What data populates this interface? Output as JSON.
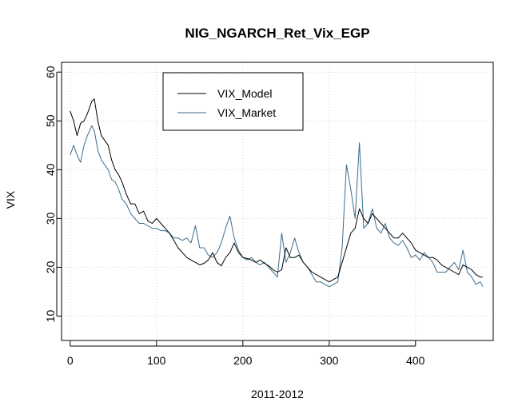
{
  "chart_data": {
    "type": "line",
    "title": "NIG_NGARCH_Ret_Vix_EGP",
    "xlabel": "2011-2012",
    "ylabel": "VIX",
    "xlim": [
      -10,
      490
    ],
    "ylim": [
      5,
      62
    ],
    "x_ticks": [
      "0",
      "100",
      "200",
      "300",
      "400"
    ],
    "y_ticks": [
      "10",
      "20",
      "30",
      "40",
      "50",
      "60"
    ],
    "grid": true,
    "legend_position": "top-left",
    "legend": [
      "VIX_Model",
      "VIX_Market"
    ],
    "series": [
      {
        "name": "VIX_Model",
        "color": "#000000",
        "points": [
          [
            0,
            52
          ],
          [
            4,
            50
          ],
          [
            8,
            47
          ],
          [
            12,
            49.5
          ],
          [
            16,
            50
          ],
          [
            20,
            51.5
          ],
          [
            25,
            54
          ],
          [
            28,
            54.5
          ],
          [
            32,
            50
          ],
          [
            36,
            47
          ],
          [
            40,
            46
          ],
          [
            44,
            45
          ],
          [
            48,
            42
          ],
          [
            52,
            40
          ],
          [
            56,
            39
          ],
          [
            60,
            37.5
          ],
          [
            65,
            35
          ],
          [
            70,
            33
          ],
          [
            75,
            33
          ],
          [
            80,
            31
          ],
          [
            85,
            31.5
          ],
          [
            90,
            29.5
          ],
          [
            95,
            29
          ],
          [
            100,
            30
          ],
          [
            105,
            29
          ],
          [
            110,
            28
          ],
          [
            115,
            27
          ],
          [
            120,
            25.5
          ],
          [
            125,
            24
          ],
          [
            130,
            23
          ],
          [
            135,
            22
          ],
          [
            140,
            21.5
          ],
          [
            145,
            21
          ],
          [
            150,
            20.5
          ],
          [
            155,
            20.8
          ],
          [
            160,
            21.5
          ],
          [
            165,
            23
          ],
          [
            170,
            21
          ],
          [
            175,
            20.3
          ],
          [
            180,
            22
          ],
          [
            185,
            23
          ],
          [
            190,
            25
          ],
          [
            195,
            23
          ],
          [
            200,
            22
          ],
          [
            205,
            21.8
          ],
          [
            210,
            21.5
          ],
          [
            215,
            21
          ],
          [
            220,
            21.5
          ],
          [
            225,
            20.8
          ],
          [
            230,
            20.3
          ],
          [
            235,
            19.5
          ],
          [
            240,
            19
          ],
          [
            245,
            19.5
          ],
          [
            250,
            24
          ],
          [
            255,
            22
          ],
          [
            260,
            22
          ],
          [
            265,
            22.5
          ],
          [
            270,
            21
          ],
          [
            275,
            20
          ],
          [
            280,
            19
          ],
          [
            285,
            18.5
          ],
          [
            290,
            18
          ],
          [
            295,
            17.5
          ],
          [
            300,
            17
          ],
          [
            305,
            17.5
          ],
          [
            310,
            18
          ],
          [
            315,
            21
          ],
          [
            320,
            24
          ],
          [
            325,
            27
          ],
          [
            330,
            28
          ],
          [
            335,
            32
          ],
          [
            340,
            30
          ],
          [
            345,
            29
          ],
          [
            350,
            31
          ],
          [
            355,
            30
          ],
          [
            360,
            29
          ],
          [
            365,
            28
          ],
          [
            370,
            27
          ],
          [
            375,
            26
          ],
          [
            380,
            26
          ],
          [
            385,
            27
          ],
          [
            390,
            26
          ],
          [
            395,
            25
          ],
          [
            400,
            23.5
          ],
          [
            405,
            23
          ],
          [
            410,
            22.5
          ],
          [
            415,
            22
          ],
          [
            420,
            22
          ],
          [
            425,
            21.5
          ],
          [
            430,
            20.5
          ],
          [
            435,
            20
          ],
          [
            440,
            19.5
          ],
          [
            445,
            19
          ],
          [
            450,
            18.5
          ],
          [
            455,
            20.5
          ],
          [
            460,
            20
          ],
          [
            465,
            19.5
          ],
          [
            470,
            18.5
          ],
          [
            475,
            18
          ],
          [
            478,
            18
          ]
        ]
      },
      {
        "name": "VIX_Market",
        "color": "#3a6d8c",
        "points": [
          [
            0,
            43
          ],
          [
            4,
            45
          ],
          [
            8,
            43
          ],
          [
            12,
            41.5
          ],
          [
            16,
            45
          ],
          [
            20,
            47
          ],
          [
            25,
            49
          ],
          [
            28,
            48
          ],
          [
            32,
            44
          ],
          [
            36,
            42
          ],
          [
            40,
            41
          ],
          [
            44,
            40
          ],
          [
            48,
            38
          ],
          [
            52,
            37.5
          ],
          [
            56,
            36
          ],
          [
            60,
            34
          ],
          [
            65,
            33
          ],
          [
            70,
            31
          ],
          [
            75,
            30
          ],
          [
            80,
            29
          ],
          [
            85,
            29
          ],
          [
            90,
            28.5
          ],
          [
            95,
            28
          ],
          [
            100,
            28
          ],
          [
            105,
            27.5
          ],
          [
            110,
            27.5
          ],
          [
            115,
            27
          ],
          [
            120,
            26
          ],
          [
            125,
            26
          ],
          [
            130,
            25.5
          ],
          [
            135,
            26
          ],
          [
            140,
            25
          ],
          [
            145,
            28.5
          ],
          [
            150,
            24
          ],
          [
            155,
            24
          ],
          [
            160,
            22.5
          ],
          [
            165,
            22
          ],
          [
            170,
            23
          ],
          [
            175,
            25
          ],
          [
            180,
            28
          ],
          [
            185,
            30.5
          ],
          [
            190,
            26
          ],
          [
            195,
            23.5
          ],
          [
            200,
            22
          ],
          [
            205,
            21.5
          ],
          [
            210,
            22
          ],
          [
            215,
            21
          ],
          [
            220,
            20.5
          ],
          [
            225,
            21
          ],
          [
            230,
            20
          ],
          [
            235,
            19
          ],
          [
            240,
            18
          ],
          [
            245,
            27
          ],
          [
            250,
            21
          ],
          [
            255,
            23
          ],
          [
            260,
            26
          ],
          [
            265,
            23
          ],
          [
            270,
            21
          ],
          [
            275,
            20
          ],
          [
            280,
            18.5
          ],
          [
            285,
            17
          ],
          [
            290,
            17
          ],
          [
            295,
            16.5
          ],
          [
            300,
            16
          ],
          [
            305,
            16.5
          ],
          [
            310,
            17
          ],
          [
            315,
            24
          ],
          [
            320,
            41
          ],
          [
            325,
            36
          ],
          [
            330,
            30
          ],
          [
            335,
            45.5
          ],
          [
            340,
            28
          ],
          [
            345,
            29
          ],
          [
            350,
            32
          ],
          [
            355,
            28
          ],
          [
            360,
            27
          ],
          [
            365,
            29
          ],
          [
            370,
            26
          ],
          [
            375,
            25
          ],
          [
            380,
            24.5
          ],
          [
            385,
            25.5
          ],
          [
            390,
            24
          ],
          [
            395,
            22
          ],
          [
            400,
            22.5
          ],
          [
            405,
            21.5
          ],
          [
            410,
            23
          ],
          [
            415,
            22
          ],
          [
            420,
            21
          ],
          [
            425,
            19
          ],
          [
            430,
            19
          ],
          [
            435,
            19
          ],
          [
            440,
            20
          ],
          [
            445,
            21
          ],
          [
            450,
            19.5
          ],
          [
            455,
            23.5
          ],
          [
            460,
            19
          ],
          [
            465,
            18
          ],
          [
            470,
            16.5
          ],
          [
            475,
            17
          ],
          [
            478,
            16
          ]
        ]
      }
    ]
  }
}
